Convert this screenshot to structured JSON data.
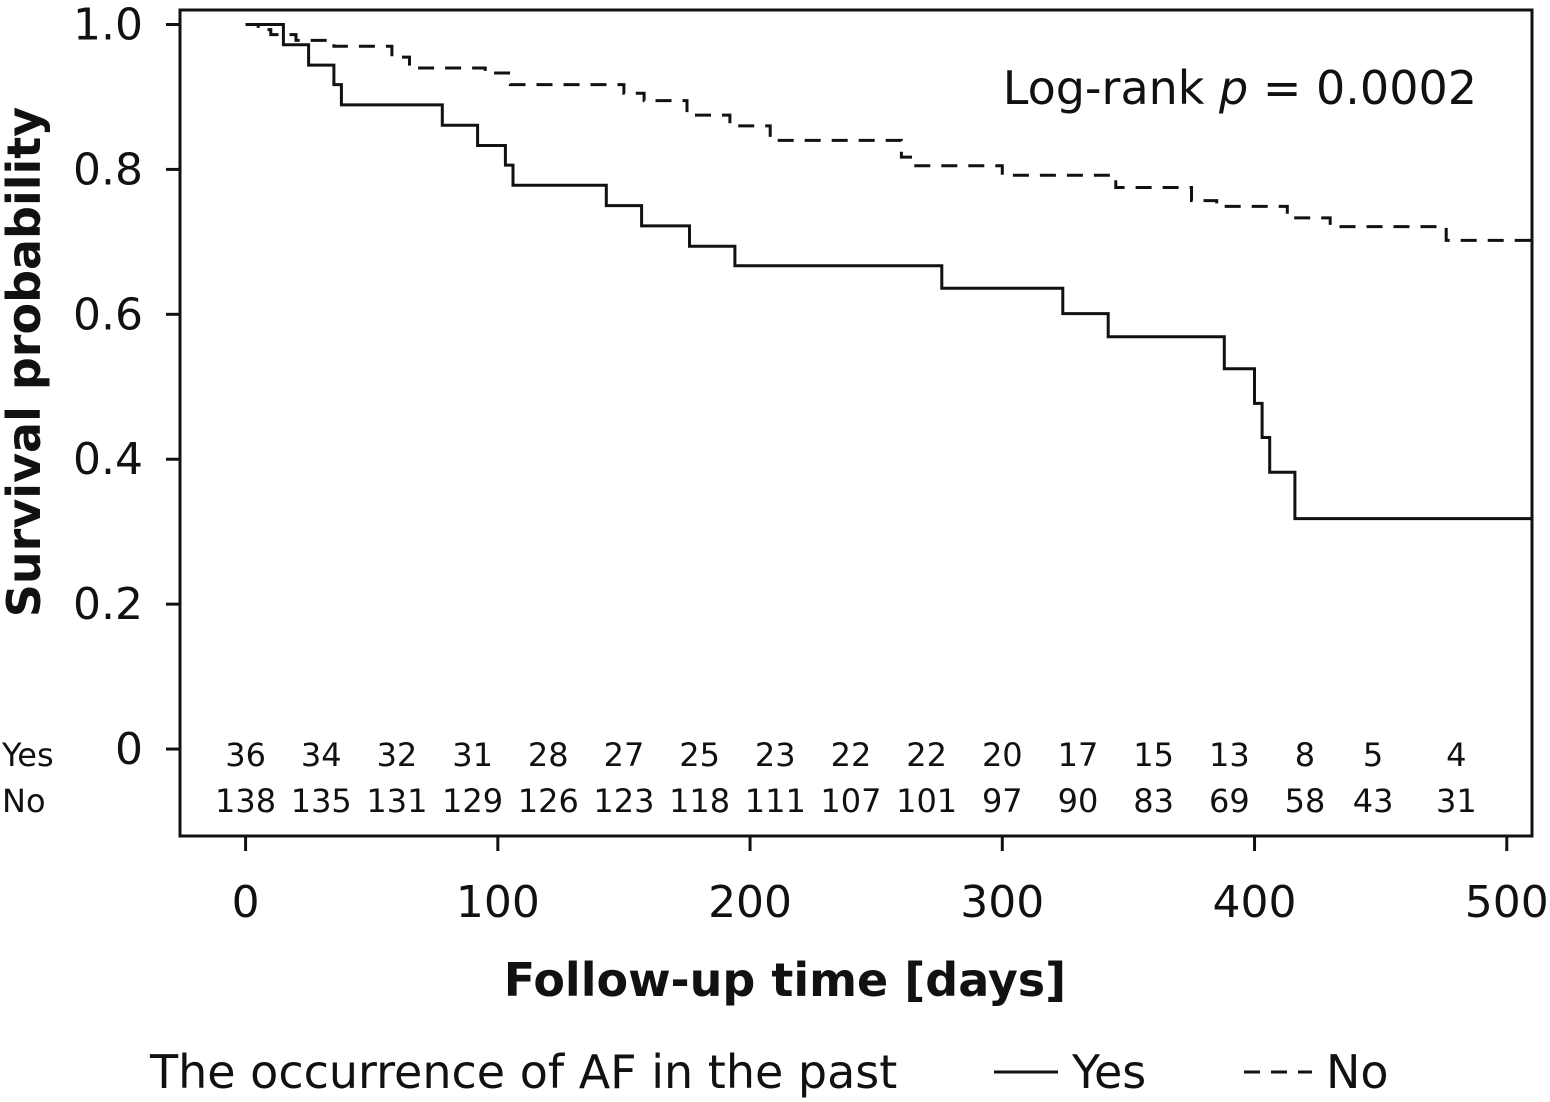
{
  "chart_data": {
    "type": "line",
    "subtype": "kaplan-meier-step",
    "xlabel": "Follow-up time [days]",
    "ylabel": "Survival probability",
    "xlim": [
      -26,
      510
    ],
    "ylim": [
      -0.12,
      1.02
    ],
    "x_ticks": [
      0,
      100,
      200,
      300,
      400,
      500
    ],
    "x_tick_labels": [
      "0",
      "100",
      "200",
      "300",
      "400",
      "500"
    ],
    "y_ticks": [
      0,
      0.2,
      0.4,
      0.6,
      0.8,
      1.0
    ],
    "y_tick_labels": [
      "0",
      "0.2",
      "0.4",
      "0.6",
      "0.8",
      "1.0"
    ],
    "annotation": {
      "prefix": "Log-rank ",
      "p_symbol": "p",
      "suffix": " = 0.0002"
    },
    "legend": {
      "title": "The occurrence of AF in the past",
      "position": "bottom"
    },
    "series": [
      {
        "name": "Yes",
        "style": "solid",
        "color": "#111111",
        "x": [
          0,
          15,
          15,
          25,
          25,
          35,
          35,
          38,
          38,
          78,
          78,
          92,
          92,
          103,
          103,
          106,
          106,
          143,
          143,
          157,
          157,
          176,
          176,
          194,
          194,
          276,
          276,
          324,
          324,
          342,
          342,
          388,
          388,
          400,
          400,
          403,
          403,
          406,
          406,
          416,
          416,
          438,
          438,
          510
        ],
        "y": [
          1.0,
          1.0,
          0.972,
          0.972,
          0.944,
          0.944,
          0.917,
          0.917,
          0.889,
          0.889,
          0.861,
          0.861,
          0.833,
          0.833,
          0.806,
          0.806,
          0.778,
          0.778,
          0.75,
          0.75,
          0.722,
          0.722,
          0.694,
          0.694,
          0.667,
          0.667,
          0.636,
          0.636,
          0.601,
          0.601,
          0.569,
          0.569,
          0.525,
          0.525,
          0.477,
          0.477,
          0.43,
          0.43,
          0.382,
          0.382,
          0.318,
          0.318,
          0.318,
          0.318
        ]
      },
      {
        "name": "No",
        "style": "dashed",
        "color": "#111111",
        "x": [
          0,
          5,
          5,
          10,
          10,
          20,
          20,
          35,
          35,
          58,
          58,
          65,
          65,
          95,
          95,
          105,
          105,
          150,
          150,
          158,
          158,
          175,
          175,
          192,
          192,
          208,
          208,
          260,
          260,
          265,
          265,
          300,
          300,
          345,
          345,
          375,
          375,
          385,
          385,
          413,
          413,
          430,
          430,
          476,
          476,
          510
        ],
        "y": [
          1.0,
          1.0,
          0.993,
          0.993,
          0.986,
          0.986,
          0.978,
          0.978,
          0.97,
          0.97,
          0.955,
          0.955,
          0.94,
          0.94,
          0.933,
          0.933,
          0.917,
          0.917,
          0.905,
          0.905,
          0.895,
          0.895,
          0.875,
          0.875,
          0.86,
          0.86,
          0.84,
          0.84,
          0.817,
          0.817,
          0.805,
          0.805,
          0.792,
          0.792,
          0.775,
          0.775,
          0.757,
          0.757,
          0.749,
          0.749,
          0.733,
          0.733,
          0.721,
          0.721,
          0.702,
          0.702
        ]
      }
    ],
    "risk_table": {
      "times": [
        0,
        30,
        60,
        90,
        120,
        150,
        180,
        210,
        240,
        270,
        300,
        330,
        360,
        390,
        420,
        447,
        480
      ],
      "rows": [
        {
          "label": "Yes",
          "values": [
            "36",
            "34",
            "32",
            "31",
            "28",
            "27",
            "25",
            "23",
            "22",
            "22",
            "20",
            "17",
            "15",
            "13",
            "8",
            "5",
            "4"
          ]
        },
        {
          "label": "No",
          "values": [
            "138",
            "135",
            "131",
            "129",
            "126",
            "123",
            "118",
            "111",
            "107",
            "101",
            "97",
            "90",
            "83",
            "69",
            "58",
            "43",
            "31"
          ]
        }
      ]
    }
  }
}
